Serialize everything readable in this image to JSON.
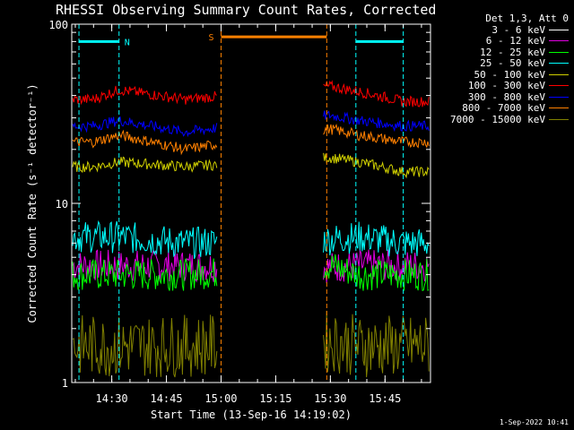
{
  "chart_data": {
    "type": "line",
    "title": "RHESSI Observing Summary Count Rates, Corrected",
    "xlabel": "Start Time (13-Sep-16 14:19:02)",
    "ylabel": "Corrected Count Rate (s⁻¹ detector⁻¹)",
    "yscale": "log",
    "ylim": [
      1,
      100
    ],
    "xlim_minutes": [
      14.317,
      15.958
    ],
    "x_ticks": [
      "14:30",
      "14:45",
      "15:00",
      "15:15",
      "15:30",
      "15:45"
    ],
    "y_ticks": [
      "1",
      "10",
      "100"
    ],
    "legend_title": "Det 1,3, Att 0",
    "legend_placement": "right",
    "series": [
      {
        "name": "3 - 6 keV",
        "color": "#ffffff",
        "values": []
      },
      {
        "name": "6 - 12 keV",
        "color": "#e000e0",
        "values": [
          4.5,
          4.5,
          4.5,
          4.4,
          4.5,
          4.5
        ]
      },
      {
        "name": "12 - 25 keV",
        "color": "#00ff00",
        "values": [
          4.0,
          4.0,
          4.0,
          4.5,
          4.0,
          4.0
        ]
      },
      {
        "name": "25 - 50 keV",
        "color": "#00ffff",
        "values": [
          6.5,
          6.5,
          6.0,
          6.3,
          6.5,
          6.0
        ]
      },
      {
        "name": "50 - 100 keV",
        "color": "#d0d000",
        "values": [
          16,
          17,
          16,
          18,
          17,
          15
        ]
      },
      {
        "name": "100 - 300 keV",
        "color": "#ff0000",
        "values": [
          38,
          43,
          38,
          45,
          42,
          37
        ]
      },
      {
        "name": "300 - 800 keV",
        "color": "#0000ff",
        "values": [
          27,
          29,
          25,
          31,
          29,
          27
        ]
      },
      {
        "name": "800 - 7000 keV",
        "color": "#ff8000",
        "values": [
          22,
          24,
          20,
          26,
          24,
          22
        ]
      },
      {
        "name": "7000 - 15000 keV",
        "color": "#808000",
        "values": [
          1.6,
          1.6,
          1.6,
          1.7,
          1.6,
          1.6
        ]
      }
    ],
    "time_points": [
      "14:25",
      "14:32",
      "14:50",
      "15:30",
      "15:38",
      "15:50"
    ],
    "data_gap": [
      "14:59",
      "15:28"
    ],
    "annotations": [
      {
        "label": "N",
        "color": "#00ffff",
        "range": [
          "14:21",
          "14:32"
        ],
        "value": 80
      },
      {
        "label": "S",
        "color": "#ff8000",
        "range": [
          "15:00",
          "15:29"
        ],
        "value": 85
      },
      {
        "label": "",
        "color": "#00ffff",
        "range": [
          "15:37",
          "15:50"
        ],
        "value": 80
      }
    ]
  },
  "timestamp": "1-Sep-2022 10:41"
}
